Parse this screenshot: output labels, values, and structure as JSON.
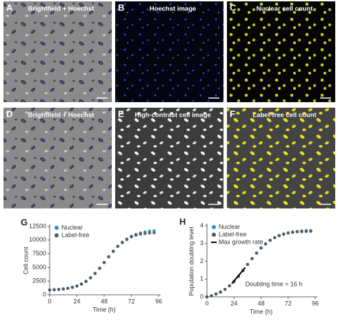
{
  "panels": [
    {
      "label": "A",
      "title": "Brightfield + Hoechst"
    },
    {
      "label": "B",
      "title": "Hoechst image"
    },
    {
      "label": "C",
      "title": "Nuclear cell count"
    },
    {
      "label": "D",
      "title": "Brightfield + Hoechst"
    },
    {
      "label": "E",
      "title": "High-contrast cell image"
    },
    {
      "label": "F",
      "title": "Label-free cell count"
    }
  ],
  "chart_data": [
    {
      "type": "scatter",
      "label": "G",
      "x_label": "Time (h)",
      "y_label": "Cell count",
      "x": [
        0,
        4,
        8,
        12,
        16,
        20,
        24,
        28,
        32,
        36,
        40,
        44,
        48,
        52,
        56,
        60,
        64,
        68,
        72,
        76,
        80,
        84,
        88,
        92
      ],
      "xlim": [
        0,
        96
      ],
      "xticks": [
        0,
        24,
        48,
        72,
        96
      ],
      "ylim": [
        0,
        12500
      ],
      "yticks": [
        0,
        2500,
        5000,
        7500,
        10000,
        12500
      ],
      "series": [
        {
          "name": "Nuclear",
          "color": "#2a8fd6",
          "values": [
            880,
            920,
            980,
            1060,
            1180,
            1350,
            1600,
            1950,
            2450,
            3100,
            3900,
            4850,
            5900,
            6950,
            7950,
            8850,
            9600,
            10200,
            10700,
            11050,
            11300,
            11500,
            11650,
            11700
          ]
        },
        {
          "name": "Label-free",
          "color": "#555555",
          "values": [
            880,
            920,
            980,
            1060,
            1180,
            1350,
            1600,
            1950,
            2450,
            3100,
            3900,
            4850,
            5900,
            6950,
            7950,
            8850,
            9550,
            10100,
            10600,
            10900,
            11100,
            11200,
            11300,
            11350
          ]
        }
      ]
    },
    {
      "type": "scatter",
      "label": "H",
      "x_label": "Time (h)",
      "y_label": "Population doubling level",
      "annotation": "Doubling time = 16 h",
      "x": [
        0,
        4,
        8,
        12,
        16,
        20,
        24,
        28,
        32,
        36,
        40,
        44,
        48,
        52,
        56,
        60,
        64,
        68,
        72,
        76,
        80,
        84,
        88,
        92
      ],
      "xlim": [
        0,
        96
      ],
      "xticks": [
        0,
        24,
        48,
        72,
        96
      ],
      "ylim": [
        0,
        4
      ],
      "yticks": [
        0,
        1,
        2,
        3,
        4
      ],
      "series": [
        {
          "name": "Nuclear",
          "color": "#2a8fd6",
          "values": [
            0,
            0.06,
            0.16,
            0.27,
            0.42,
            0.62,
            0.86,
            1.15,
            1.48,
            1.82,
            2.15,
            2.46,
            2.75,
            2.98,
            3.18,
            3.33,
            3.45,
            3.54,
            3.6,
            3.65,
            3.68,
            3.71,
            3.73,
            3.73
          ]
        },
        {
          "name": "Label-free",
          "color": "#555555",
          "values": [
            0,
            0.06,
            0.16,
            0.27,
            0.42,
            0.62,
            0.86,
            1.15,
            1.48,
            1.82,
            2.15,
            2.46,
            2.75,
            2.98,
            3.18,
            3.33,
            3.44,
            3.52,
            3.59,
            3.63,
            3.66,
            3.67,
            3.68,
            3.69
          ]
        },
        {
          "name": "Max growth rate",
          "color": "#000000",
          "style": "line",
          "x": [
            22,
            34
          ],
          "values": [
            0.74,
            1.65
          ]
        }
      ]
    }
  ]
}
